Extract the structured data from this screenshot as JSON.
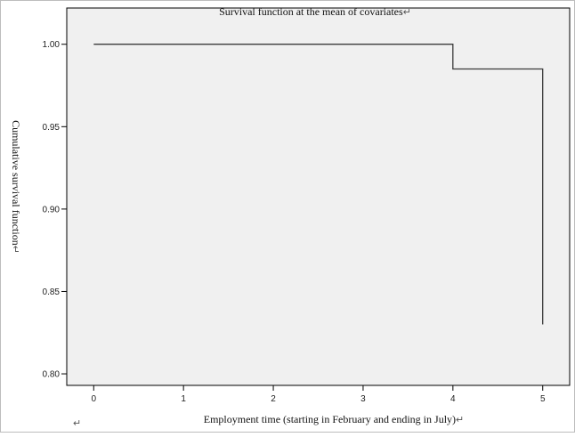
{
  "chart_data": {
    "type": "line",
    "title": "Survival function at the mean of covariates",
    "xlabel": "Employment time (starting in February and ending in July)",
    "ylabel": "Cumulative survival function",
    "x_ticks": [
      "0",
      "1",
      "2",
      "3",
      "4",
      "5"
    ],
    "y_ticks": [
      "0.80",
      "0.85",
      "0.90",
      "0.95",
      "1.00"
    ],
    "xlim": [
      -0.3,
      5.3
    ],
    "ylim": [
      0.793,
      1.022
    ],
    "step": true,
    "series": [
      {
        "x": [
          0,
          4,
          4,
          5,
          5
        ],
        "y": [
          1.0,
          1.0,
          0.985,
          0.985,
          0.83
        ]
      }
    ],
    "grid": false,
    "legend": "none",
    "colors": {
      "plot_background": "#f0f0f0",
      "line": "#3a3a3a",
      "frame": "#000000"
    }
  },
  "paragraph_mark": "↵"
}
